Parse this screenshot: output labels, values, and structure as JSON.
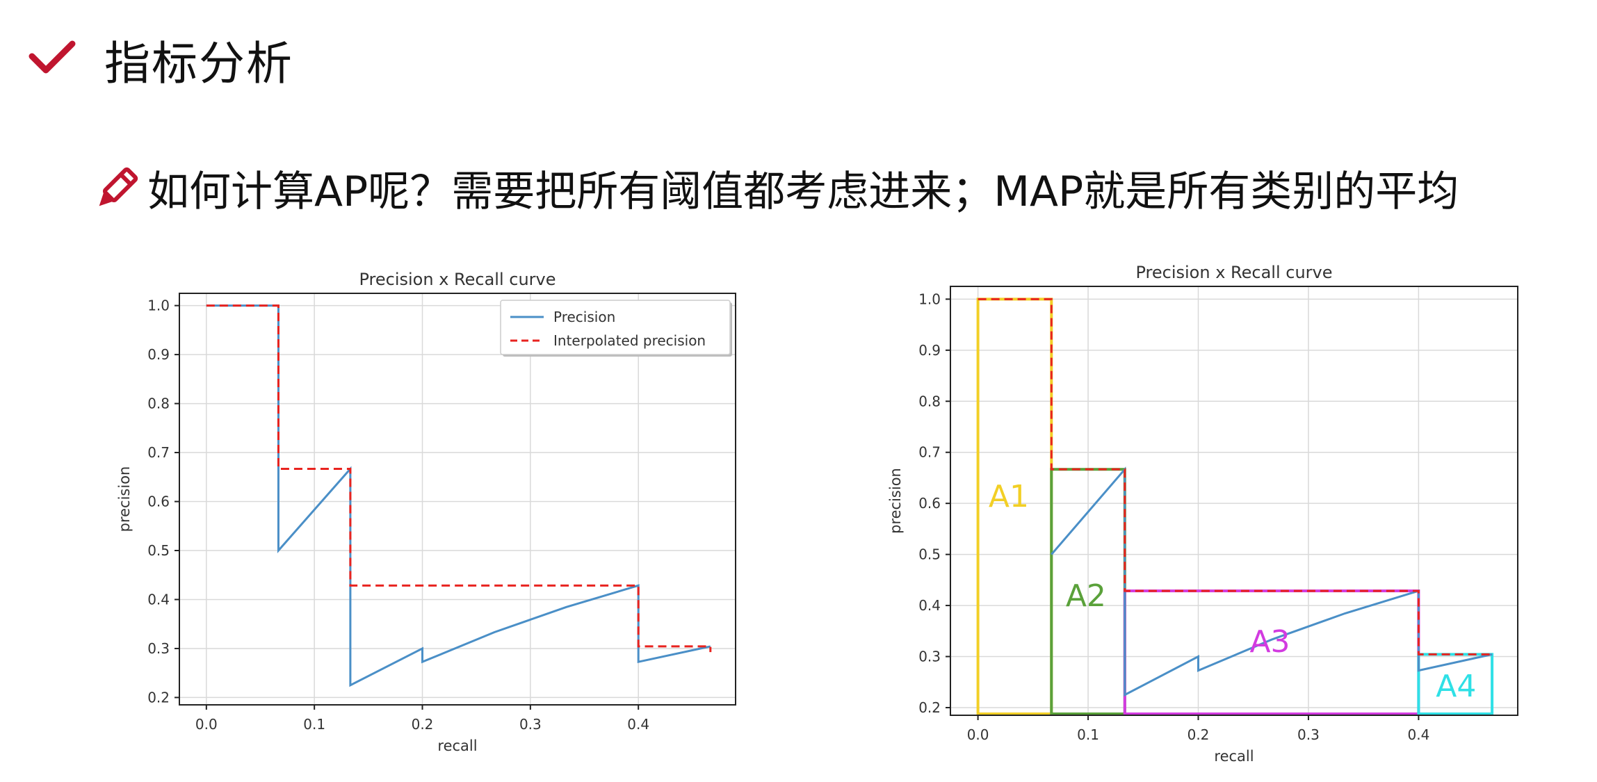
{
  "slide": {
    "title": "指标分析",
    "subtitle": "如何计算AP呢？需要把所有阈值都考虑进来；MAP就是所有类别的平均",
    "accent_color": "#c0152f",
    "icons": [
      "check-icon",
      "pencil-icon"
    ]
  },
  "chart_data": [
    {
      "type": "line",
      "title": "Precision x Recall curve",
      "xlabel": "recall",
      "ylabel": "precision",
      "xlim": [
        -0.025,
        0.49
      ],
      "ylim": [
        0.185,
        1.025
      ],
      "xticks": [
        "0.0",
        "0.1",
        "0.2",
        "0.3",
        "0.4"
      ],
      "yticks": [
        "0.2",
        "0.3",
        "0.4",
        "0.5",
        "0.6",
        "0.7",
        "0.8",
        "0.9",
        "1.0"
      ],
      "grid": true,
      "legend_position": "top-right",
      "series": [
        {
          "name": "Precision",
          "color": "#4a8fc7",
          "style": "solid",
          "x": [
            0.0,
            0.0667,
            0.0667,
            0.1333,
            0.1333,
            0.1333,
            0.2,
            0.2,
            0.2667,
            0.3333,
            0.4,
            0.4,
            0.4667
          ],
          "y": [
            1.0,
            1.0,
            0.5,
            0.6667,
            0.4286,
            0.225,
            0.3,
            0.2727,
            0.3333,
            0.3846,
            0.4286,
            0.2727,
            0.3043
          ]
        },
        {
          "name": "Interpolated precision",
          "color": "#e8231f",
          "style": "dashed",
          "x": [
            0.0,
            0.0667,
            0.0667,
            0.1333,
            0.1333,
            0.4,
            0.4,
            0.4667,
            0.4667
          ],
          "y": [
            1.0,
            1.0,
            0.6667,
            0.6667,
            0.4286,
            0.4286,
            0.3043,
            0.3043,
            0.2927
          ]
        }
      ]
    },
    {
      "type": "line",
      "title": "Precision x Recall curve",
      "xlabel": "recall",
      "ylabel": "precision",
      "xlim": [
        -0.025,
        0.49
      ],
      "ylim": [
        0.185,
        1.025
      ],
      "xticks": [
        "0.0",
        "0.1",
        "0.2",
        "0.3",
        "0.4"
      ],
      "yticks": [
        "0.2",
        "0.3",
        "0.4",
        "0.5",
        "0.6",
        "0.7",
        "0.8",
        "0.9",
        "1.0"
      ],
      "grid": true,
      "series": [
        {
          "color": "#4a8fc7",
          "style": "solid",
          "x": [
            0.0667,
            0.1333,
            0.1333,
            0.2,
            0.2,
            0.2667,
            0.3333,
            0.4,
            0.4,
            0.4667
          ],
          "y": [
            0.5,
            0.6667,
            0.225,
            0.3,
            0.2727,
            0.3333,
            0.3846,
            0.4286,
            0.2727,
            0.3043
          ]
        },
        {
          "color": "#e8231f",
          "style": "dashed",
          "x": [
            0.0,
            0.0667,
            0.0667,
            0.1333,
            0.1333,
            0.4,
            0.4,
            0.4667
          ],
          "y": [
            1.0,
            1.0,
            0.6667,
            0.6667,
            0.4286,
            0.4286,
            0.3043,
            0.3043
          ]
        }
      ],
      "regions": [
        {
          "label": "A1",
          "color": "#f2cf25",
          "x0": 0.0,
          "x1": 0.0667,
          "y0": 0.185,
          "y1": 1.0,
          "label_x": 0.028,
          "label_y": 0.61
        },
        {
          "label": "A2",
          "color": "#5aa13a",
          "x0": 0.0667,
          "x1": 0.1333,
          "y0": 0.185,
          "y1": 0.6667,
          "label_x": 0.098,
          "label_y": 0.415
        },
        {
          "label": "A3",
          "color": "#d23be0",
          "x0": 0.1333,
          "x1": 0.4,
          "y0": 0.185,
          "y1": 0.4286,
          "label_x": 0.265,
          "label_y": 0.325
        },
        {
          "label": "A4",
          "color": "#2fe0e6",
          "x0": 0.4,
          "x1": 0.4667,
          "y0": 0.185,
          "y1": 0.3043,
          "label_x": 0.434,
          "label_y": 0.238
        }
      ]
    }
  ]
}
